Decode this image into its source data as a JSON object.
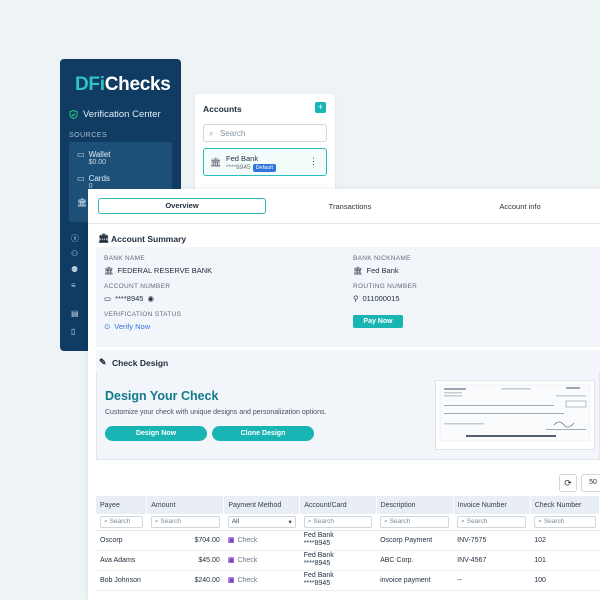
{
  "brand": {
    "prefix": "DFi",
    "name": "Checks"
  },
  "sidebar": {
    "verification": "Verification Center",
    "sources_header": "SOURCES",
    "sources": [
      {
        "label": "Wallet",
        "sub": "$0.00"
      },
      {
        "label": "Cards",
        "sub": "0"
      }
    ]
  },
  "accounts": {
    "title": "Accounts",
    "add": "+",
    "search_placeholder": "Search",
    "items": [
      {
        "name": "Fed Bank",
        "masked": "****8945",
        "badge": "Default"
      }
    ]
  },
  "tabs": [
    "Overview",
    "Transactions",
    "Account info"
  ],
  "account_summary": {
    "title": "Account Summary",
    "bank_name_label": "BANK NAME",
    "bank_name": "FEDERAL RESERVE BANK",
    "nickname_label": "BANK NICKNAME",
    "nickname": "Fed Bank",
    "account_number_label": "ACCOUNT NUMBER",
    "account_number": "****8945",
    "routing_label": "ROUTING NUMBER",
    "routing": "011000015",
    "status_label": "VERIFICATION STATUS",
    "status": "Verify Now",
    "pay_now": "Pay Now"
  },
  "check_design": {
    "title": "Check Design",
    "heading": "Design Your Check",
    "description": "Customize your check with unique designs and personalization options.",
    "design_now": "Design Now",
    "clone_design": "Clone Design"
  },
  "table": {
    "per_page": "50",
    "columns": [
      "Payee",
      "Amount",
      "Payment Method",
      "Account/Card",
      "Description",
      "Invoice Number",
      "Check Number"
    ],
    "filter_placeholder": "Search",
    "method_filter": "All",
    "rows": [
      {
        "payee": "Oscorp",
        "amount": "$704.00",
        "method": "Check",
        "acct_name": "Fed Bank",
        "acct_num": "****8945",
        "description": "Oscorp Payment",
        "invoice": "INV-7575",
        "check": "102"
      },
      {
        "payee": "Ava Adams",
        "amount": "$45.00",
        "method": "Check",
        "acct_name": "Fed Bank",
        "acct_num": "****8945",
        "description": "ABC Corp.",
        "invoice": "INV-4567",
        "check": "101"
      },
      {
        "payee": "Bob Johnson",
        "amount": "$240.00",
        "method": "Check",
        "acct_name": "Fed Bank",
        "acct_num": "****8945",
        "description": "invoice payment",
        "invoice": "--",
        "check": "100"
      }
    ]
  }
}
